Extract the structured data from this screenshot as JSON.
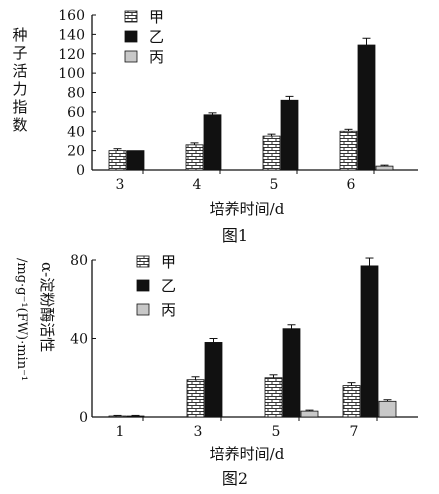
{
  "chart_data": [
    {
      "type": "bar",
      "caption": "图1",
      "xlabel": "培养时间/d",
      "ylabel": "种子活力指数",
      "categories": [
        "3",
        "4",
        "5",
        "6"
      ],
      "ylim": [
        0,
        160
      ],
      "yticks": [
        0,
        20,
        40,
        60,
        80,
        100,
        120,
        140,
        160
      ],
      "legend_position": "top-left",
      "series": [
        {
          "name": "甲",
          "pattern": "brick",
          "values": [
            20,
            26,
            35,
            40
          ],
          "errors": [
            2,
            2,
            2,
            2
          ]
        },
        {
          "name": "乙",
          "pattern": "solid",
          "values": [
            20,
            57,
            72,
            129
          ],
          "errors": [
            0,
            2,
            4,
            7
          ]
        },
        {
          "name": "丙",
          "pattern": "grey",
          "values": [
            0,
            0,
            0,
            4
          ],
          "errors": [
            0,
            0,
            0,
            1
          ]
        }
      ]
    },
    {
      "type": "bar",
      "caption": "图2",
      "xlabel": "培养时间/d",
      "ylabel": "α-淀粉酶活性",
      "yunit": "/mg·g⁻¹(FW)·min⁻¹",
      "categories": [
        "1",
        "3",
        "5",
        "7"
      ],
      "ylim": [
        0,
        80
      ],
      "yticks": [
        0,
        40,
        80
      ],
      "legend_position": "top-left",
      "series": [
        {
          "name": "甲",
          "pattern": "brick",
          "values": [
            0.5,
            19,
            20,
            16
          ],
          "errors": [
            0.3,
            1.5,
            1.5,
            1.5
          ]
        },
        {
          "name": "乙",
          "pattern": "solid",
          "values": [
            0.5,
            38,
            45,
            77
          ],
          "errors": [
            0.3,
            2,
            2,
            4
          ]
        },
        {
          "name": "丙",
          "pattern": "grey",
          "values": [
            0,
            0,
            3,
            8
          ],
          "errors": [
            0,
            0,
            0.5,
            0.8
          ]
        }
      ]
    }
  ]
}
